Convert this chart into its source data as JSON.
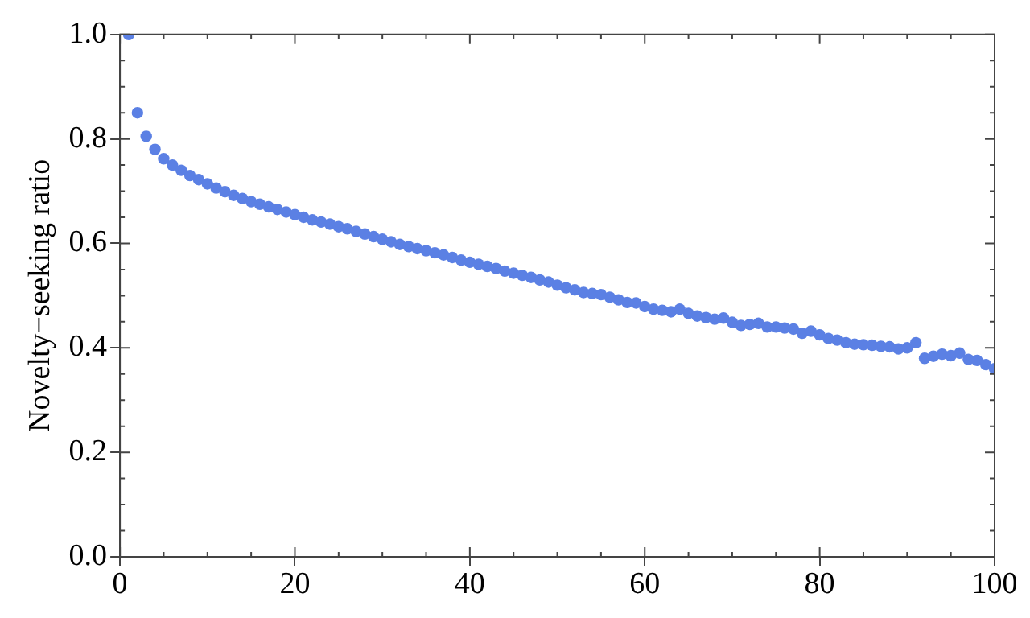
{
  "chart_data": {
    "type": "scatter",
    "ylabel": "Novelty−seeking ratio",
    "marker": "circle",
    "grid": false,
    "legend": false,
    "xlim": [
      0,
      100
    ],
    "xticks": [
      0,
      20,
      40,
      60,
      80,
      100
    ],
    "ylim": [
      0,
      1
    ],
    "yticks": [
      {
        "value": 0,
        "label": "0.0"
      },
      {
        "value": 0.2,
        "label": "0.2"
      },
      {
        "value": 0.4,
        "label": "0.4"
      },
      {
        "value": 0.6,
        "label": "0.6"
      },
      {
        "value": 0.8,
        "label": "0.8"
      },
      {
        "value": 1,
        "label": "1.0"
      }
    ],
    "series": [
      {
        "color": "#5b80e4",
        "x": [
          1,
          2,
          3,
          4,
          5,
          6,
          7,
          8,
          9,
          10,
          11,
          12,
          13,
          14,
          15,
          16,
          17,
          18,
          19,
          20,
          21,
          22,
          23,
          24,
          25,
          26,
          27,
          28,
          29,
          30,
          31,
          32,
          33,
          34,
          35,
          36,
          37,
          38,
          39,
          40,
          41,
          42,
          43,
          44,
          45,
          46,
          47,
          48,
          49,
          50,
          51,
          52,
          53,
          54,
          55,
          56,
          57,
          58,
          59,
          60,
          61,
          62,
          63,
          64,
          65,
          66,
          67,
          68,
          69,
          70,
          71,
          72,
          73,
          74,
          75,
          76,
          77,
          78,
          79,
          80,
          81,
          82,
          83,
          84,
          85,
          86,
          87,
          88,
          89,
          90,
          91,
          92,
          93,
          94,
          95,
          96,
          97,
          98,
          99,
          100
        ],
        "values": [
          1.0,
          0.85,
          0.805,
          0.78,
          0.762,
          0.75,
          0.74,
          0.73,
          0.722,
          0.714,
          0.706,
          0.699,
          0.692,
          0.686,
          0.68,
          0.675,
          0.67,
          0.665,
          0.66,
          0.655,
          0.65,
          0.645,
          0.641,
          0.637,
          0.632,
          0.628,
          0.623,
          0.618,
          0.613,
          0.608,
          0.603,
          0.598,
          0.594,
          0.59,
          0.586,
          0.582,
          0.578,
          0.573,
          0.568,
          0.564,
          0.56,
          0.556,
          0.552,
          0.547,
          0.543,
          0.539,
          0.535,
          0.53,
          0.526,
          0.52,
          0.515,
          0.511,
          0.506,
          0.504,
          0.502,
          0.497,
          0.492,
          0.487,
          0.486,
          0.479,
          0.474,
          0.472,
          0.469,
          0.474,
          0.466,
          0.461,
          0.458,
          0.455,
          0.457,
          0.449,
          0.443,
          0.445,
          0.447,
          0.44,
          0.44,
          0.438,
          0.436,
          0.428,
          0.432,
          0.425,
          0.418,
          0.415,
          0.41,
          0.407,
          0.406,
          0.405,
          0.403,
          0.402,
          0.398,
          0.4,
          0.41,
          0.38,
          0.384,
          0.388,
          0.385,
          0.39,
          0.378,
          0.376,
          0.368,
          0.36
        ]
      }
    ]
  }
}
